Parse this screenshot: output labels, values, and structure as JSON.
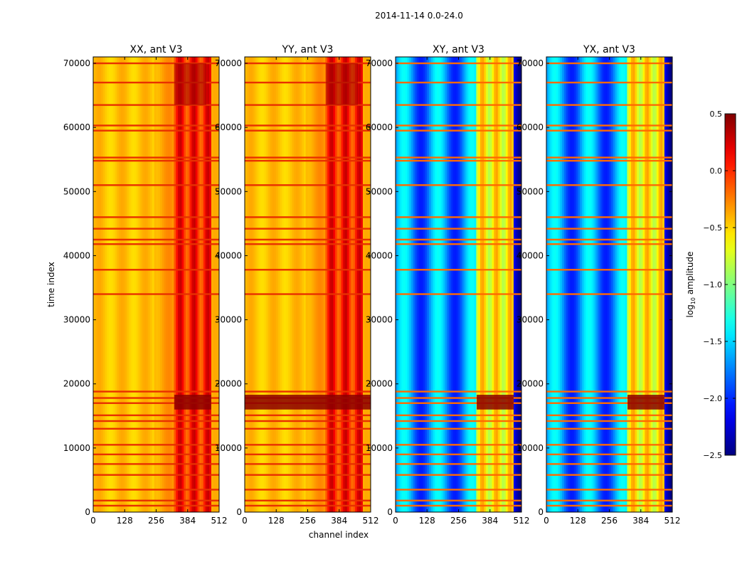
{
  "chart_data": {
    "type": "heatmap",
    "suptitle": "2014-11-14 0.0-24.0",
    "xlabel": "channel index",
    "ylabel": "time index",
    "xlim": [
      0,
      512
    ],
    "ylim": [
      0,
      71000
    ],
    "x_ticks": [
      0,
      128,
      256,
      384,
      512
    ],
    "y_ticks": [
      0,
      10000,
      20000,
      30000,
      40000,
      50000,
      60000,
      70000
    ],
    "panels": [
      {
        "title": "XX, ant V3",
        "base_level": -0.45,
        "high_band_level": 0.05
      },
      {
        "title": "YY, ant V3",
        "base_level": -0.45,
        "high_band_level": 0.05
      },
      {
        "title": "XY, ant V3",
        "base_level": -1.7,
        "high_band_level": -0.6
      },
      {
        "title": "YX, ant V3",
        "base_level": -1.7,
        "high_band_level": -0.6
      }
    ],
    "high_band_channels": [
      330,
      480
    ],
    "flagged_time_rows": [
      1000,
      1800,
      3500,
      5800,
      7500,
      9000,
      10500,
      13000,
      14200,
      15100,
      17000,
      17800,
      18800,
      34000,
      37800,
      41800,
      42500,
      44200,
      46000,
      51000,
      54800,
      55300,
      59500,
      60300,
      63500,
      67000,
      70000
    ],
    "colorbar": {
      "label_main": "log",
      "label_sub": "10",
      "label_tail": " amplitude",
      "range": [
        -2.5,
        0.5
      ],
      "ticks": [
        "0.5",
        "0.0",
        "−0.5",
        "−1.0",
        "−1.5",
        "−2.0",
        "−2.5"
      ],
      "tick_values": [
        0.5,
        0.0,
        -0.5,
        -1.0,
        -1.5,
        -2.0,
        -2.5
      ],
      "colormap": "jet"
    }
  }
}
